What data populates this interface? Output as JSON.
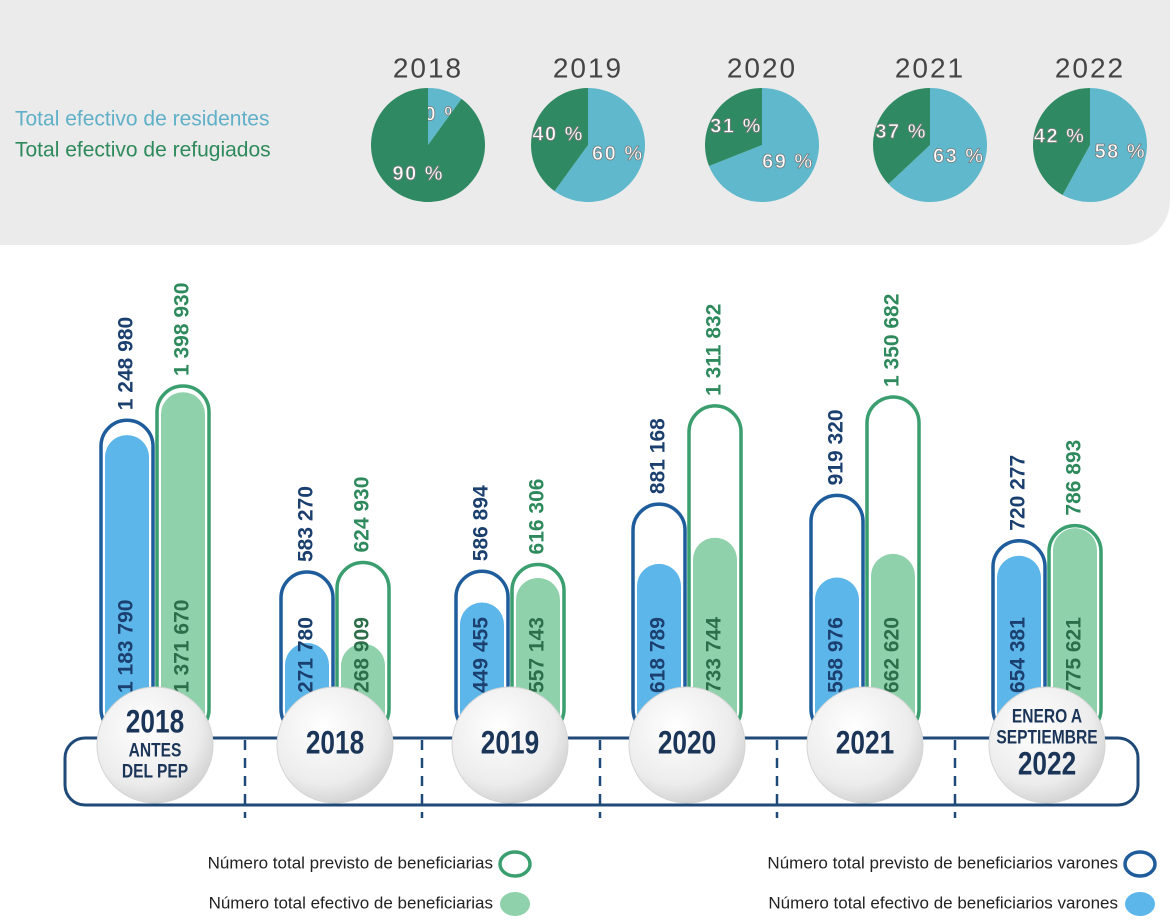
{
  "chart_data": [
    {
      "type": "pie",
      "categories": [
        "Total efectivo de residentes",
        "Total efectivo de refugiados"
      ],
      "colors": [
        "#5fb8cc",
        "#2f8a63"
      ],
      "series": [
        {
          "name": "2018",
          "values": [
            10,
            90
          ],
          "value_labels": [
            "10 %",
            "90 %"
          ]
        },
        {
          "name": "2019",
          "values": [
            60,
            40
          ],
          "value_labels": [
            "60 %",
            "40 %"
          ]
        },
        {
          "name": "2020",
          "values": [
            69,
            31
          ],
          "value_labels": [
            "69 %",
            "31 %"
          ]
        },
        {
          "name": "2021",
          "values": [
            63,
            37
          ],
          "value_labels": [
            "63 %",
            "37 %"
          ]
        },
        {
          "name": "2022",
          "values": [
            58,
            42
          ],
          "value_labels": [
            "58 %",
            "42 %"
          ]
        }
      ]
    },
    {
      "type": "bar",
      "categories": [
        [
          "2018",
          "ANTES",
          "DEL PEP"
        ],
        [
          "2018"
        ],
        [
          "2019"
        ],
        [
          "2020"
        ],
        [
          "2021"
        ],
        [
          "ENERO A",
          "SEPTIEMBRE",
          "2022"
        ]
      ],
      "series": [
        {
          "name": "Número total previsto de beneficiarias",
          "color": "#3a9e6f",
          "style": "outline",
          "values": [
            1398930,
            624930,
            616306,
            1311832,
            1350682,
            786893
          ],
          "value_labels": [
            "1 398 930",
            "624 930",
            "616 306",
            "1 311 832",
            "1 350 682",
            "786 893"
          ]
        },
        {
          "name": "Número total previsto de beneficiarios varones",
          "color": "#1e5c9c",
          "style": "outline",
          "values": [
            1248980,
            583270,
            586894,
            881168,
            919320,
            720277
          ],
          "value_labels": [
            "1 248 980",
            "583 270",
            "586 894",
            "881 168",
            "919 320",
            "720 277"
          ]
        },
        {
          "name": "Número total efectivo de beneficiarias",
          "color": "#8ed1aa",
          "style": "fill",
          "values": [
            1371670,
            268909,
            557143,
            733744,
            662620,
            775621
          ],
          "value_labels": [
            "1 371 670",
            "268 909",
            "557 143",
            "733 744",
            "662 620",
            "775 621"
          ]
        },
        {
          "name": "Número total efectivo de beneficiarios varones",
          "color": "#5cb6ea",
          "style": "fill",
          "values": [
            1183790,
            271780,
            449455,
            618789,
            558976,
            654381
          ],
          "value_labels": [
            "1 183 790",
            "271 780",
            "449 455",
            "618 789",
            "558 976",
            "654 381"
          ]
        }
      ]
    }
  ]
}
